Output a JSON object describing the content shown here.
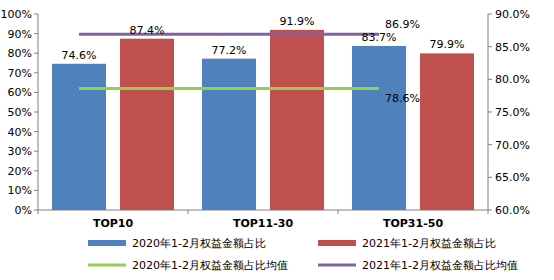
{
  "chart_data": {
    "type": "bar",
    "categories": [
      "TOP10",
      "TOP11-30",
      "TOP31-50"
    ],
    "series": [
      {
        "name": "2020年1-2月权益金额占比",
        "color": "#4f81bd",
        "values": [
          74.6,
          77.2,
          83.7
        ],
        "value_labels": [
          "74.6%",
          "77.2%",
          "83.7%"
        ]
      },
      {
        "name": "2021年1-2月权益金额占比",
        "color": "#c0504d",
        "values": [
          87.4,
          91.9,
          79.9
        ],
        "value_labels": [
          "87.4%",
          "91.9%",
          "79.9%"
        ]
      },
      {
        "name": "2020年1-2月权益金额占比均值",
        "type": "line",
        "axis": "y2",
        "color": "#92d050",
        "values": [
          78.6,
          78.6,
          78.6
        ],
        "value_labels": [
          null,
          null,
          "78.6%"
        ]
      },
      {
        "name": "2021年1-2月权益金额占比均值",
        "type": "line",
        "axis": "y2",
        "color": "#8064a2",
        "values": [
          86.9,
          86.9,
          86.9
        ],
        "value_labels": [
          null,
          null,
          "86.9%"
        ]
      }
    ],
    "ylim": [
      0,
      100
    ],
    "yticks": [
      {
        "value": 0,
        "label": "0%"
      },
      {
        "value": 10,
        "label": "10%"
      },
      {
        "value": 20,
        "label": "20%"
      },
      {
        "value": 30,
        "label": "30%"
      },
      {
        "value": 40,
        "label": "40%"
      },
      {
        "value": 50,
        "label": "50%"
      },
      {
        "value": 60,
        "label": "60%"
      },
      {
        "value": 70,
        "label": "70%"
      },
      {
        "value": 80,
        "label": "80%"
      },
      {
        "value": 90,
        "label": "90%"
      },
      {
        "value": 100,
        "label": "100%"
      }
    ],
    "y2lim": [
      60,
      90
    ],
    "y2ticks": [
      {
        "value": 60,
        "label": "60.0%"
      },
      {
        "value": 65,
        "label": "65.0%"
      },
      {
        "value": 70,
        "label": "70.0%"
      },
      {
        "value": 75,
        "label": "75.0%"
      },
      {
        "value": 80,
        "label": "80.0%"
      },
      {
        "value": 85,
        "label": "85.0%"
      },
      {
        "value": 90,
        "label": "90.0%"
      }
    ],
    "grid": false,
    "data_labels": true,
    "legend": "bottom"
  }
}
